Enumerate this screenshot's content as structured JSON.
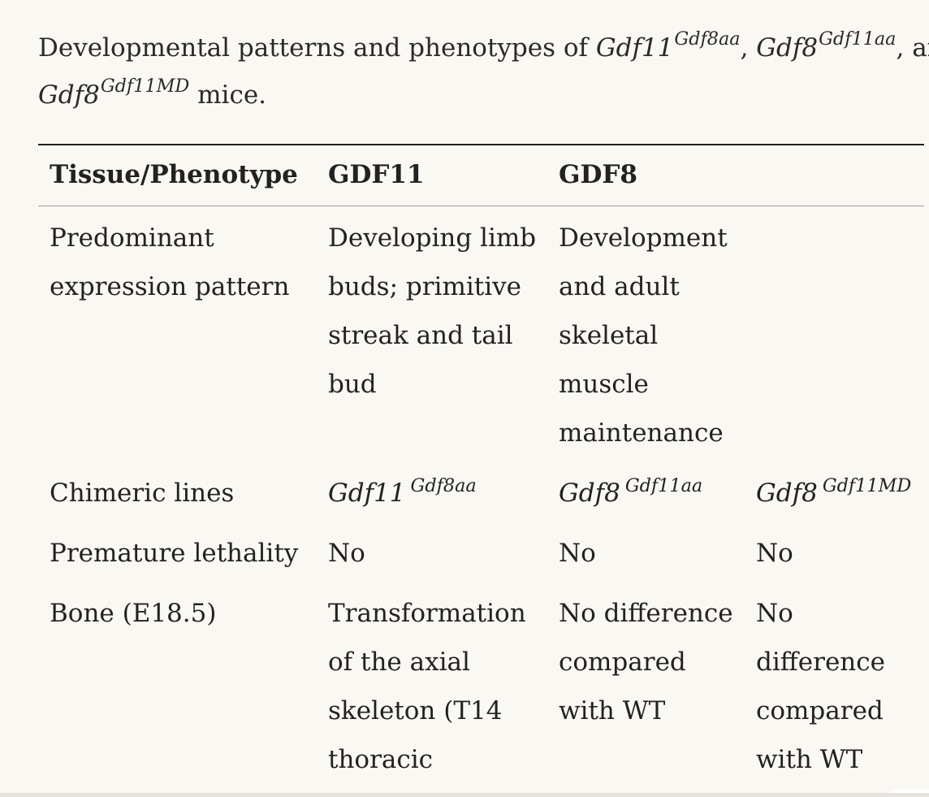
{
  "caption": {
    "prefix": "Developmental patterns and phenotypes of ",
    "gene1": "Gdf11",
    "gene1_sup": "Gdf8aa",
    "sep1": ", ",
    "gene2": "Gdf8",
    "gene2_sup": "Gdf11aa",
    "sep2": ", and",
    "gene3": "Gdf8",
    "gene3_sup": "Gdf11MD",
    "suffix": " mice."
  },
  "table": {
    "headers": [
      "Tissue/Phenotype",
      "GDF11",
      "GDF8",
      ""
    ],
    "rows": [
      {
        "label": "Predominant\nexpression pattern",
        "gdf11": "Developing limb\nbuds; primitive\nstreak and tail\nbud",
        "gdf8": "Development\nand adult\nskeletal\nmuscle\nmaintenance",
        "extra": ""
      },
      {
        "label": "Chimeric lines",
        "gdf11": {
          "gene": "Gdf11",
          "sup": "Gdf8aa"
        },
        "gdf8": {
          "gene": "Gdf8",
          "sup": "Gdf11aa"
        },
        "extra": {
          "gene": "Gdf8",
          "sup": "Gdf11MD"
        }
      },
      {
        "label": "Premature lethality",
        "gdf11": "No",
        "gdf8": "No",
        "extra": "No"
      },
      {
        "label": "Bone (E18.5)",
        "gdf11": "Transformation\nof the axial\nskeleton (T14\nthoracic",
        "gdf8": "No difference\ncompared\nwith WT",
        "extra": "No\ndifference\ncompared\nwith WT"
      }
    ]
  },
  "colors": {
    "background": "#f9f8f3",
    "text": "#222222",
    "rule": "#222222"
  }
}
